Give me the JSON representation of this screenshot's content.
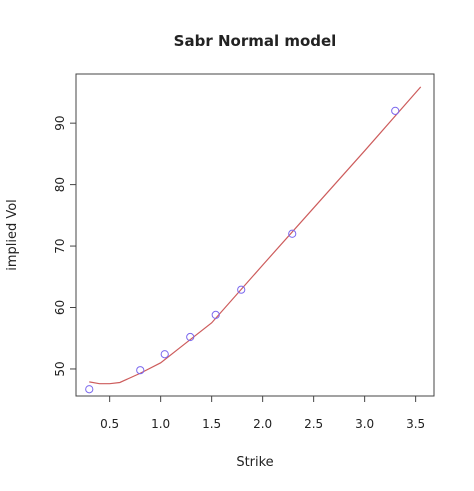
{
  "chart_data": {
    "type": "scatter",
    "title": "Sabr Normal model",
    "x_label": "Strike",
    "y_label": "implied Vol",
    "points": {
      "color": "#7b68ee",
      "x": [
        0.3,
        0.8,
        1.04,
        1.29,
        1.54,
        1.79,
        2.29,
        3.3
      ],
      "values": [
        46.7,
        49.8,
        52.4,
        55.2,
        58.8,
        62.9,
        72.0,
        92.0
      ]
    },
    "curve": {
      "color": "#cd5c5c",
      "x": [
        0.3,
        0.4,
        0.5,
        0.6,
        0.8,
        1.0,
        1.2,
        1.5,
        2.0,
        2.5,
        3.0,
        3.55
      ],
      "values": [
        47.9,
        47.6,
        47.6,
        47.8,
        49.3,
        51.0,
        53.6,
        57.5,
        66.9,
        76.2,
        85.5,
        95.9
      ]
    },
    "xlim": [
      0.17,
      3.68
    ],
    "ylim": [
      45.6,
      98.0
    ],
    "xticks": [
      0.5,
      {
        "value": 1,
        "label": "1.0"
      },
      1.5,
      {
        "value": 2,
        "label": "2.0"
      },
      2.5,
      {
        "value": 3,
        "label": "3.0"
      },
      3.5
    ],
    "yticks": [
      50,
      60,
      70,
      80,
      90
    ]
  }
}
